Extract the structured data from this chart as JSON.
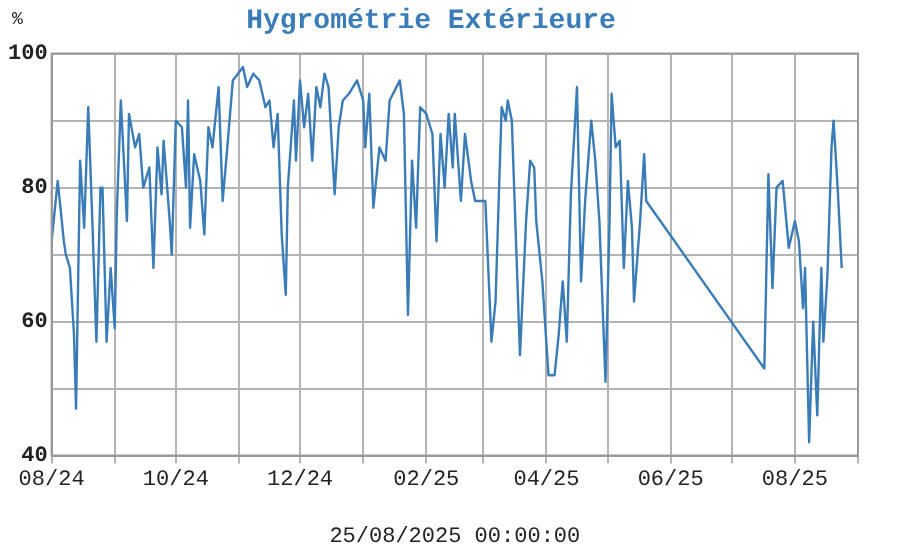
{
  "chart_data": {
    "type": "line",
    "title": "Hygrométrie Extérieure",
    "ylabel": "%",
    "annotations": [
      "25/08/2025 00:00:00"
    ],
    "x": [
      "2024-08-01",
      "2024-08-04",
      "2024-08-07",
      "2024-08-08",
      "2024-08-10",
      "2024-08-12",
      "2024-08-13",
      "2024-08-15",
      "2024-08-17",
      "2024-08-19",
      "2024-08-21",
      "2024-08-23",
      "2024-08-25",
      "2024-08-26",
      "2024-08-28",
      "2024-08-30",
      "2024-09-01",
      "2024-09-02",
      "2024-09-04",
      "2024-09-07",
      "2024-09-08",
      "2024-09-11",
      "2024-09-13",
      "2024-09-15",
      "2024-09-18",
      "2024-09-20",
      "2024-09-22",
      "2024-09-24",
      "2024-09-25",
      "2024-09-28",
      "2024-09-29",
      "2024-10-01",
      "2024-10-04",
      "2024-10-06",
      "2024-10-07",
      "2024-10-08",
      "2024-10-10",
      "2024-10-13",
      "2024-10-15",
      "2024-10-17",
      "2024-10-19",
      "2024-10-22",
      "2024-10-24",
      "2024-10-26",
      "2024-10-29",
      "2024-11-03",
      "2024-11-05",
      "2024-11-08",
      "2024-11-11",
      "2024-11-14",
      "2024-11-16",
      "2024-11-18",
      "2024-11-20",
      "2024-11-22",
      "2024-11-24",
      "2024-11-25",
      "2024-11-28",
      "2024-11-29",
      "2024-12-01",
      "2024-12-03",
      "2024-12-05",
      "2024-12-07",
      "2024-12-09",
      "2024-12-11",
      "2024-12-13",
      "2024-12-15",
      "2024-12-18",
      "2024-12-20",
      "2024-12-22",
      "2024-12-25",
      "2024-12-29",
      "2025-01-01",
      "2025-01-02",
      "2025-01-04",
      "2025-01-06",
      "2025-01-09",
      "2025-01-12",
      "2025-01-14",
      "2025-01-19",
      "2025-01-21",
      "2025-01-23",
      "2025-01-25",
      "2025-01-27",
      "2025-01-29",
      "2025-02-01",
      "2025-02-04",
      "2025-02-06",
      "2025-02-08",
      "2025-02-10",
      "2025-02-12",
      "2025-02-14",
      "2025-02-15",
      "2025-02-18",
      "2025-02-20",
      "2025-02-23",
      "2025-02-25",
      "2025-03-02",
      "2025-03-05",
      "2025-03-07",
      "2025-03-10",
      "2025-03-12",
      "2025-03-13",
      "2025-03-15",
      "2025-03-19",
      "2025-03-22",
      "2025-03-24",
      "2025-03-26",
      "2025-03-27",
      "2025-03-30",
      "2025-04-02",
      "2025-04-05",
      "2025-04-07",
      "2025-04-09",
      "2025-04-11",
      "2025-04-13",
      "2025-04-16",
      "2025-04-18",
      "2025-04-20",
      "2025-04-23",
      "2025-04-25",
      "2025-04-27",
      "2025-04-30",
      "2025-05-02",
      "2025-05-03",
      "2025-05-05",
      "2025-05-07",
      "2025-05-09",
      "2025-05-11",
      "2025-05-13",
      "2025-05-14",
      "2025-05-17",
      "2025-05-19",
      "2025-05-20",
      "2025-07-17",
      "2025-07-19",
      "2025-07-21",
      "2025-07-23",
      "2025-07-26",
      "2025-07-29",
      "2025-08-01",
      "2025-08-03",
      "2025-08-05",
      "2025-08-06",
      "2025-08-08",
      "2025-08-10",
      "2025-08-12",
      "2025-08-14",
      "2025-08-15",
      "2025-08-17",
      "2025-08-19",
      "2025-08-20",
      "2025-08-22",
      "2025-08-24"
    ],
    "series": [
      {
        "color": "#3a7cb8",
        "values": [
          72,
          81,
          72,
          70,
          68,
          58,
          47,
          84,
          74,
          92,
          75,
          57,
          80,
          80,
          57,
          68,
          59,
          76,
          93,
          75,
          91,
          86,
          88,
          80,
          83,
          68,
          86,
          79,
          87,
          75,
          70,
          90,
          89,
          80,
          93,
          74,
          85,
          81,
          73,
          89,
          86,
          95,
          78,
          85,
          96,
          98,
          95,
          97,
          96,
          92,
          93,
          86,
          91,
          73,
          64,
          80,
          93,
          84,
          96,
          89,
          94,
          84,
          95,
          92,
          97,
          95,
          79,
          89,
          93,
          94,
          96,
          93,
          86,
          94,
          77,
          86,
          84,
          93,
          96,
          91,
          61,
          84,
          74,
          92,
          91,
          88,
          72,
          88,
          80,
          91,
          83,
          91,
          78,
          88,
          81,
          78,
          78,
          57,
          63,
          92,
          90,
          93,
          90,
          55,
          75,
          84,
          83,
          75,
          66,
          52,
          52,
          58,
          66,
          57,
          79,
          95,
          66,
          78,
          90,
          84,
          75,
          51,
          75,
          94,
          86,
          87,
          68,
          81,
          74,
          63,
          75,
          85,
          78,
          53,
          82,
          65,
          80,
          81,
          71,
          75,
          72,
          62,
          68,
          42,
          60,
          46,
          68,
          57,
          67,
          86,
          90,
          80,
          68
        ]
      }
    ],
    "xlim": [
      "2024-08-01",
      "2025-09-01"
    ],
    "xticks": [
      {
        "value": "2024-08-01",
        "label": "08/24"
      },
      {
        "value": "2024-09-01",
        "label": null
      },
      {
        "value": "2024-10-01",
        "label": "10/24"
      },
      {
        "value": "2024-11-01",
        "label": null
      },
      {
        "value": "2024-12-01",
        "label": "12/24"
      },
      {
        "value": "2025-01-01",
        "label": null
      },
      {
        "value": "2025-02-01",
        "label": "02/25"
      },
      {
        "value": "2025-03-01",
        "label": null
      },
      {
        "value": "2025-04-01",
        "label": "04/25"
      },
      {
        "value": "2025-05-01",
        "label": null
      },
      {
        "value": "2025-06-01",
        "label": "06/25"
      },
      {
        "value": "2025-07-01",
        "label": null
      },
      {
        "value": "2025-08-01",
        "label": "08/25"
      },
      {
        "value": "2025-09-01",
        "label": null
      }
    ],
    "ylim": [
      40,
      100
    ],
    "yticks": [
      40,
      {
        "value": 50,
        "label": null
      },
      60,
      {
        "value": 70,
        "label": null
      },
      80,
      {
        "value": 90,
        "label": null
      },
      100
    ],
    "grid": true,
    "legend": false,
    "marker": "none",
    "line_style": "solid"
  }
}
